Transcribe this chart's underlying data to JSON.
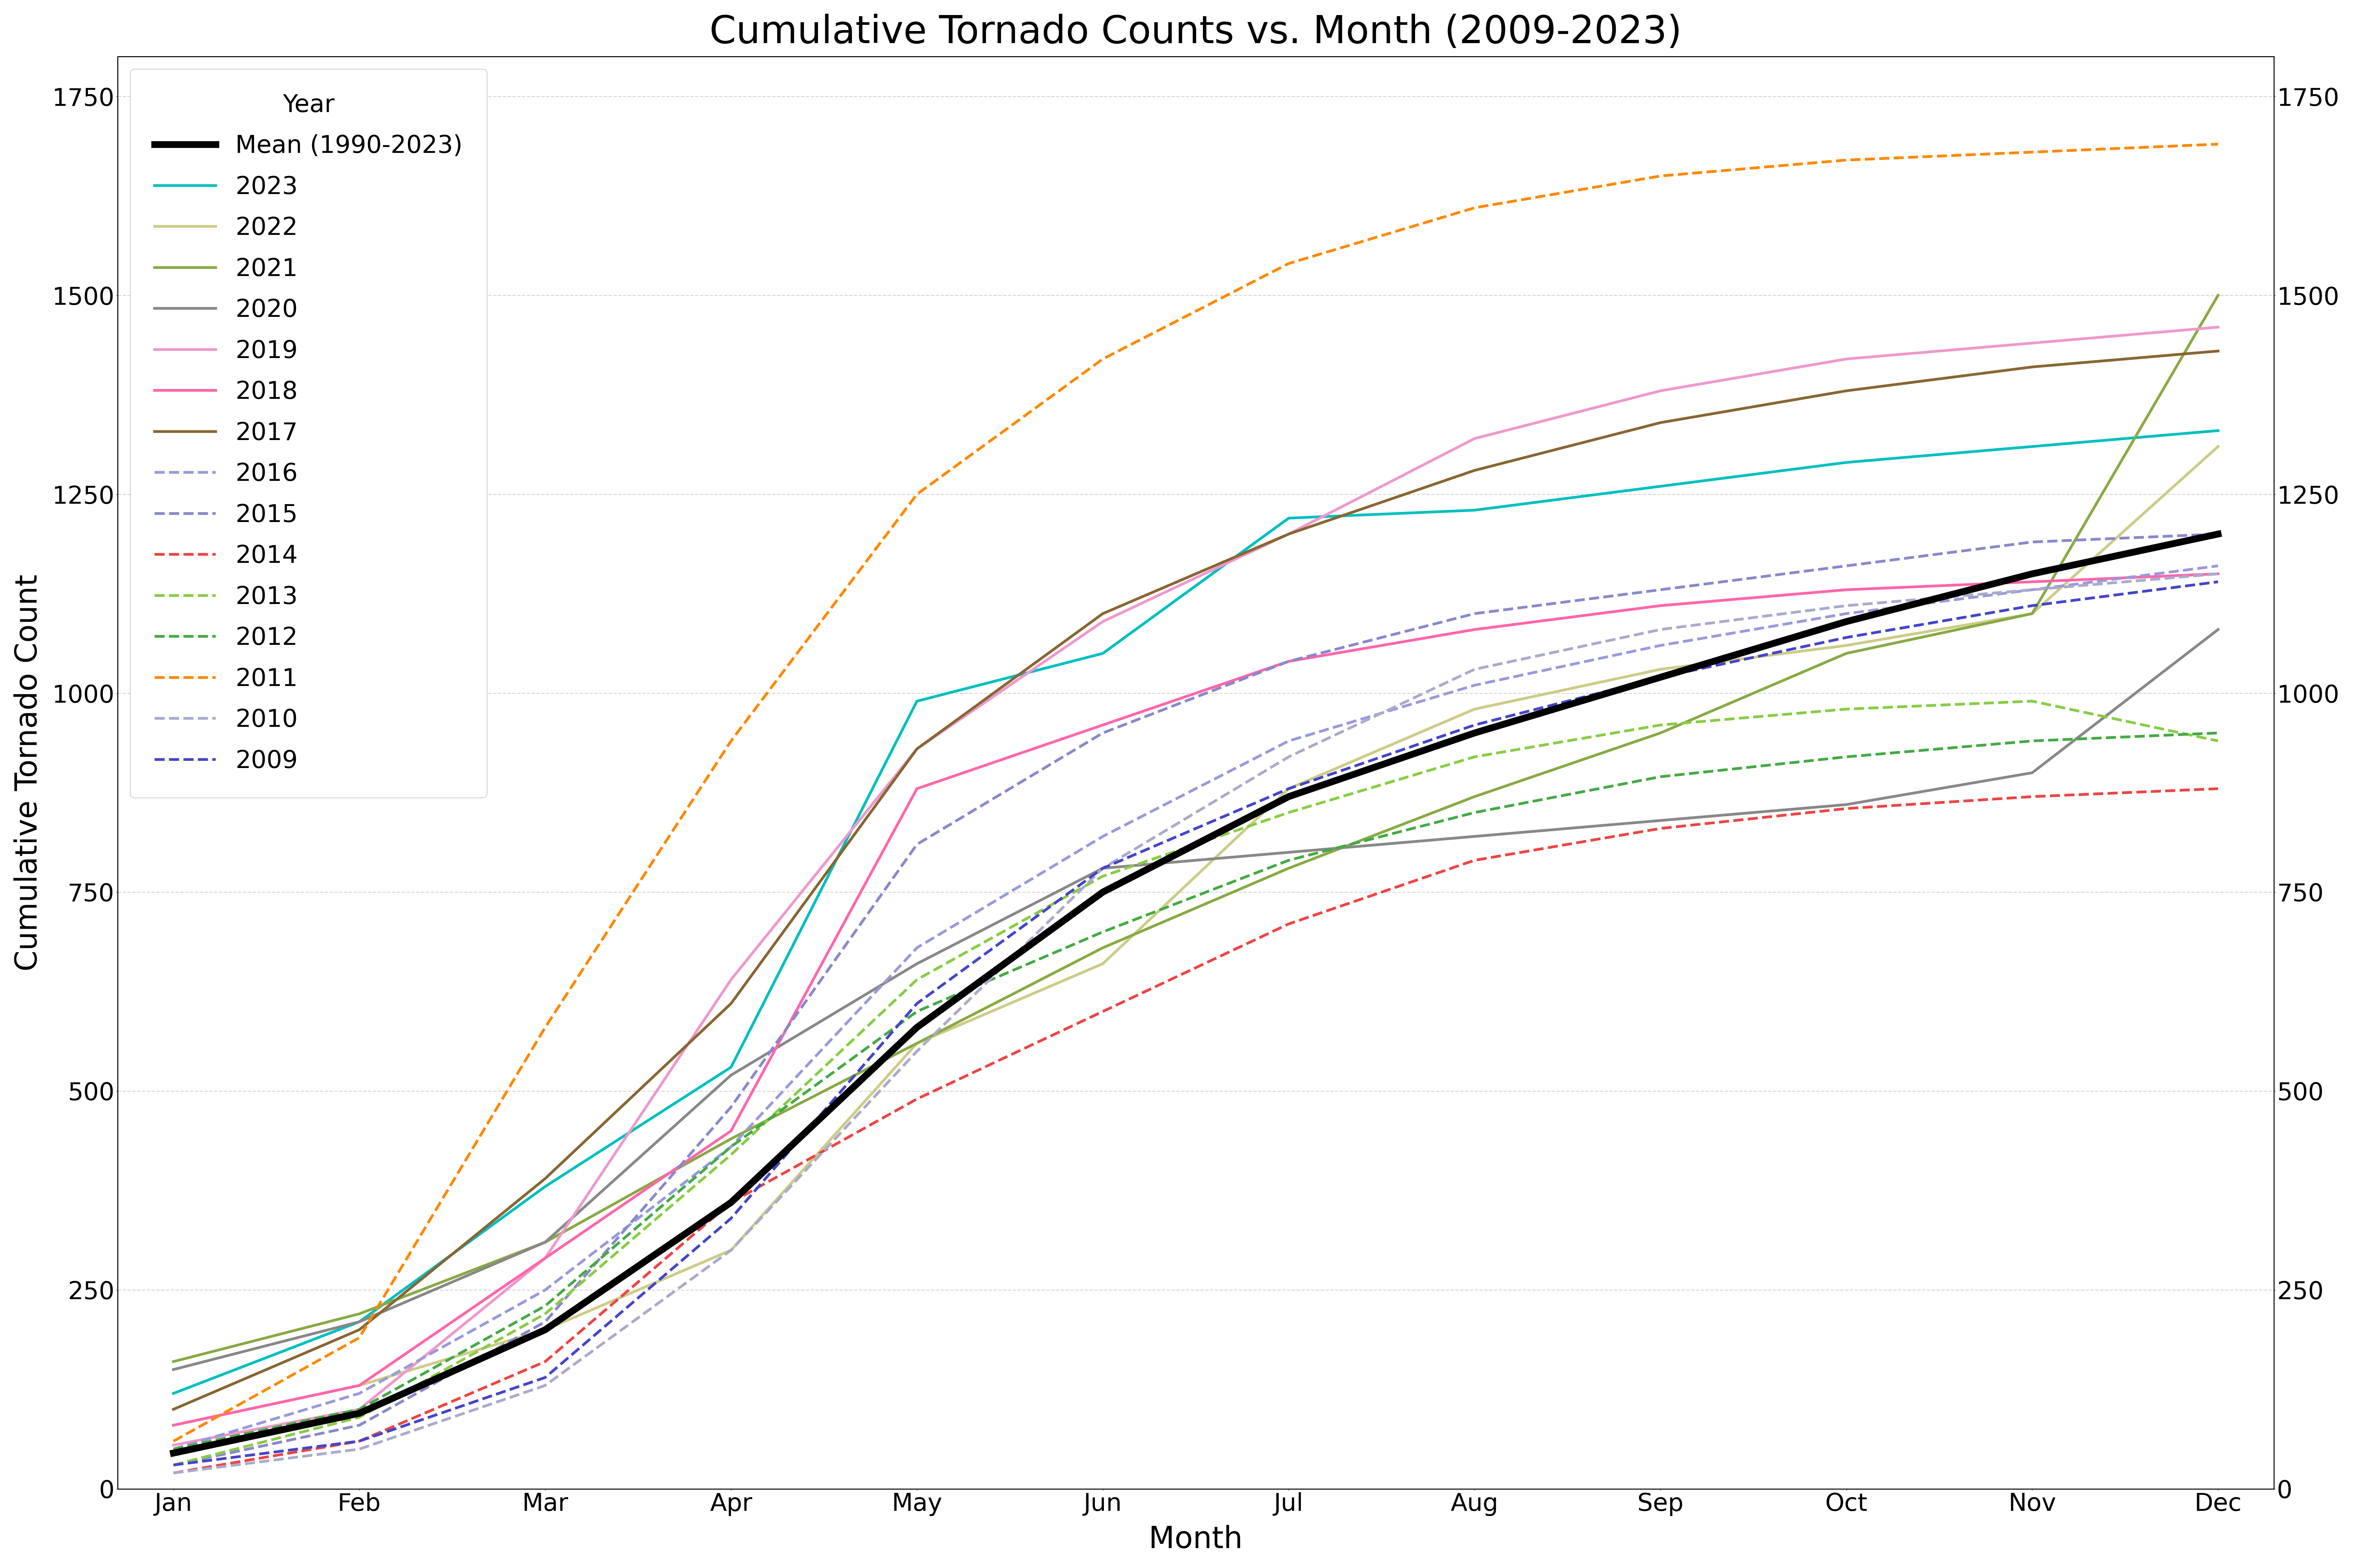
{
  "title": "Cumulative Tornado Counts vs. Month (2009-2023)",
  "xlabel": "Month",
  "ylabel": "Cumulative Tornado Count",
  "months": [
    "Jan",
    "Feb",
    "Mar",
    "Apr",
    "May",
    "Jun",
    "Jul",
    "Aug",
    "Sep",
    "Oct",
    "Nov",
    "Dec"
  ],
  "ylim": [
    0,
    1800
  ],
  "yticks": [
    0,
    250,
    500,
    750,
    1000,
    1250,
    1500,
    1750
  ],
  "series": {
    "mean": {
      "label": "Mean (1990-2023)",
      "color": "#000000",
      "linestyle": "solid",
      "linewidth": 5,
      "values": [
        45,
        95,
        200,
        360,
        580,
        750,
        870,
        950,
        1020,
        1090,
        1150,
        1200
      ]
    },
    "2023": {
      "label": "2023",
      "color": "#00BFBF",
      "linestyle": "solid",
      "linewidth": 2,
      "values": [
        120,
        210,
        380,
        530,
        990,
        1050,
        1220,
        1230,
        1260,
        1290,
        1310,
        1330
      ]
    },
    "2022": {
      "label": "2022",
      "color": "#CCCC88",
      "linestyle": "solid",
      "linewidth": 2,
      "values": [
        80,
        130,
        200,
        300,
        560,
        660,
        880,
        980,
        1030,
        1060,
        1100,
        1310
      ]
    },
    "2021": {
      "label": "2021",
      "color": "#88AA44",
      "linestyle": "solid",
      "linewidth": 2,
      "values": [
        160,
        220,
        310,
        440,
        560,
        680,
        780,
        870,
        950,
        1050,
        1100,
        1500
      ]
    },
    "2020": {
      "label": "2020",
      "color": "#888888",
      "linestyle": "solid",
      "linewidth": 2,
      "values": [
        150,
        210,
        310,
        520,
        660,
        780,
        800,
        820,
        840,
        860,
        900,
        1080
      ]
    },
    "2019": {
      "label": "2019",
      "color": "#EE99CC",
      "linestyle": "solid",
      "linewidth": 2,
      "values": [
        55,
        100,
        290,
        640,
        930,
        1090,
        1200,
        1320,
        1380,
        1420,
        1440,
        1460
      ]
    },
    "2018": {
      "label": "2018",
      "color": "#FF66AA",
      "linestyle": "solid",
      "linewidth": 2,
      "values": [
        80,
        130,
        290,
        450,
        880,
        960,
        1040,
        1080,
        1110,
        1130,
        1140,
        1150
      ]
    },
    "2017": {
      "label": "2017",
      "color": "#886633",
      "linestyle": "solid",
      "linewidth": 2,
      "values": [
        100,
        200,
        390,
        610,
        930,
        1100,
        1200,
        1280,
        1340,
        1380,
        1410,
        1430
      ]
    },
    "2016": {
      "label": "2016",
      "color": "#9999DD",
      "linestyle": "dashed",
      "linewidth": 2,
      "values": [
        50,
        120,
        250,
        430,
        680,
        820,
        940,
        1010,
        1060,
        1100,
        1130,
        1160
      ]
    },
    "2015": {
      "label": "2015",
      "color": "#8888CC",
      "linestyle": "dashed",
      "linewidth": 2,
      "values": [
        30,
        80,
        210,
        480,
        810,
        950,
        1040,
        1100,
        1130,
        1160,
        1190,
        1200
      ]
    },
    "2014": {
      "label": "2014",
      "color": "#EE4444",
      "linestyle": "dashed",
      "linewidth": 2,
      "values": [
        20,
        60,
        160,
        360,
        490,
        600,
        710,
        790,
        830,
        855,
        870,
        880
      ]
    },
    "2013": {
      "label": "2013",
      "color": "#88CC44",
      "linestyle": "dashed",
      "linewidth": 2,
      "values": [
        30,
        90,
        220,
        420,
        640,
        770,
        850,
        920,
        960,
        980,
        990,
        940
      ]
    },
    "2012": {
      "label": "2012",
      "color": "#44AA44",
      "linestyle": "dashed",
      "linewidth": 2,
      "values": [
        50,
        100,
        230,
        430,
        600,
        700,
        790,
        850,
        895,
        920,
        940,
        950
      ]
    },
    "2011": {
      "label": "2011",
      "color": "#FF8800",
      "linestyle": "dashed",
      "linewidth": 2,
      "values": [
        60,
        190,
        580,
        940,
        1250,
        1420,
        1540,
        1610,
        1650,
        1670,
        1680,
        1690
      ]
    },
    "2010": {
      "label": "2010",
      "color": "#AAAACC",
      "linestyle": "dashed",
      "linewidth": 2,
      "values": [
        20,
        50,
        130,
        300,
        550,
        780,
        920,
        1030,
        1080,
        1110,
        1130,
        1150
      ]
    },
    "2009": {
      "label": "2009",
      "color": "#4444CC",
      "linestyle": "dashed",
      "linewidth": 2,
      "values": [
        30,
        60,
        140,
        340,
        610,
        780,
        880,
        960,
        1020,
        1070,
        1110,
        1140
      ]
    }
  },
  "legend_order": [
    "mean",
    "2023",
    "2022",
    "2021",
    "2020",
    "2019",
    "2018",
    "2017",
    "2016",
    "2015",
    "2014",
    "2013",
    "2012",
    "2011",
    "2010",
    "2009"
  ],
  "grid_color": "#CCCCCC",
  "background_color": "#FFFFFF",
  "title_fontsize": 28,
  "axis_label_fontsize": 22,
  "tick_fontsize": 18,
  "legend_fontsize": 18
}
